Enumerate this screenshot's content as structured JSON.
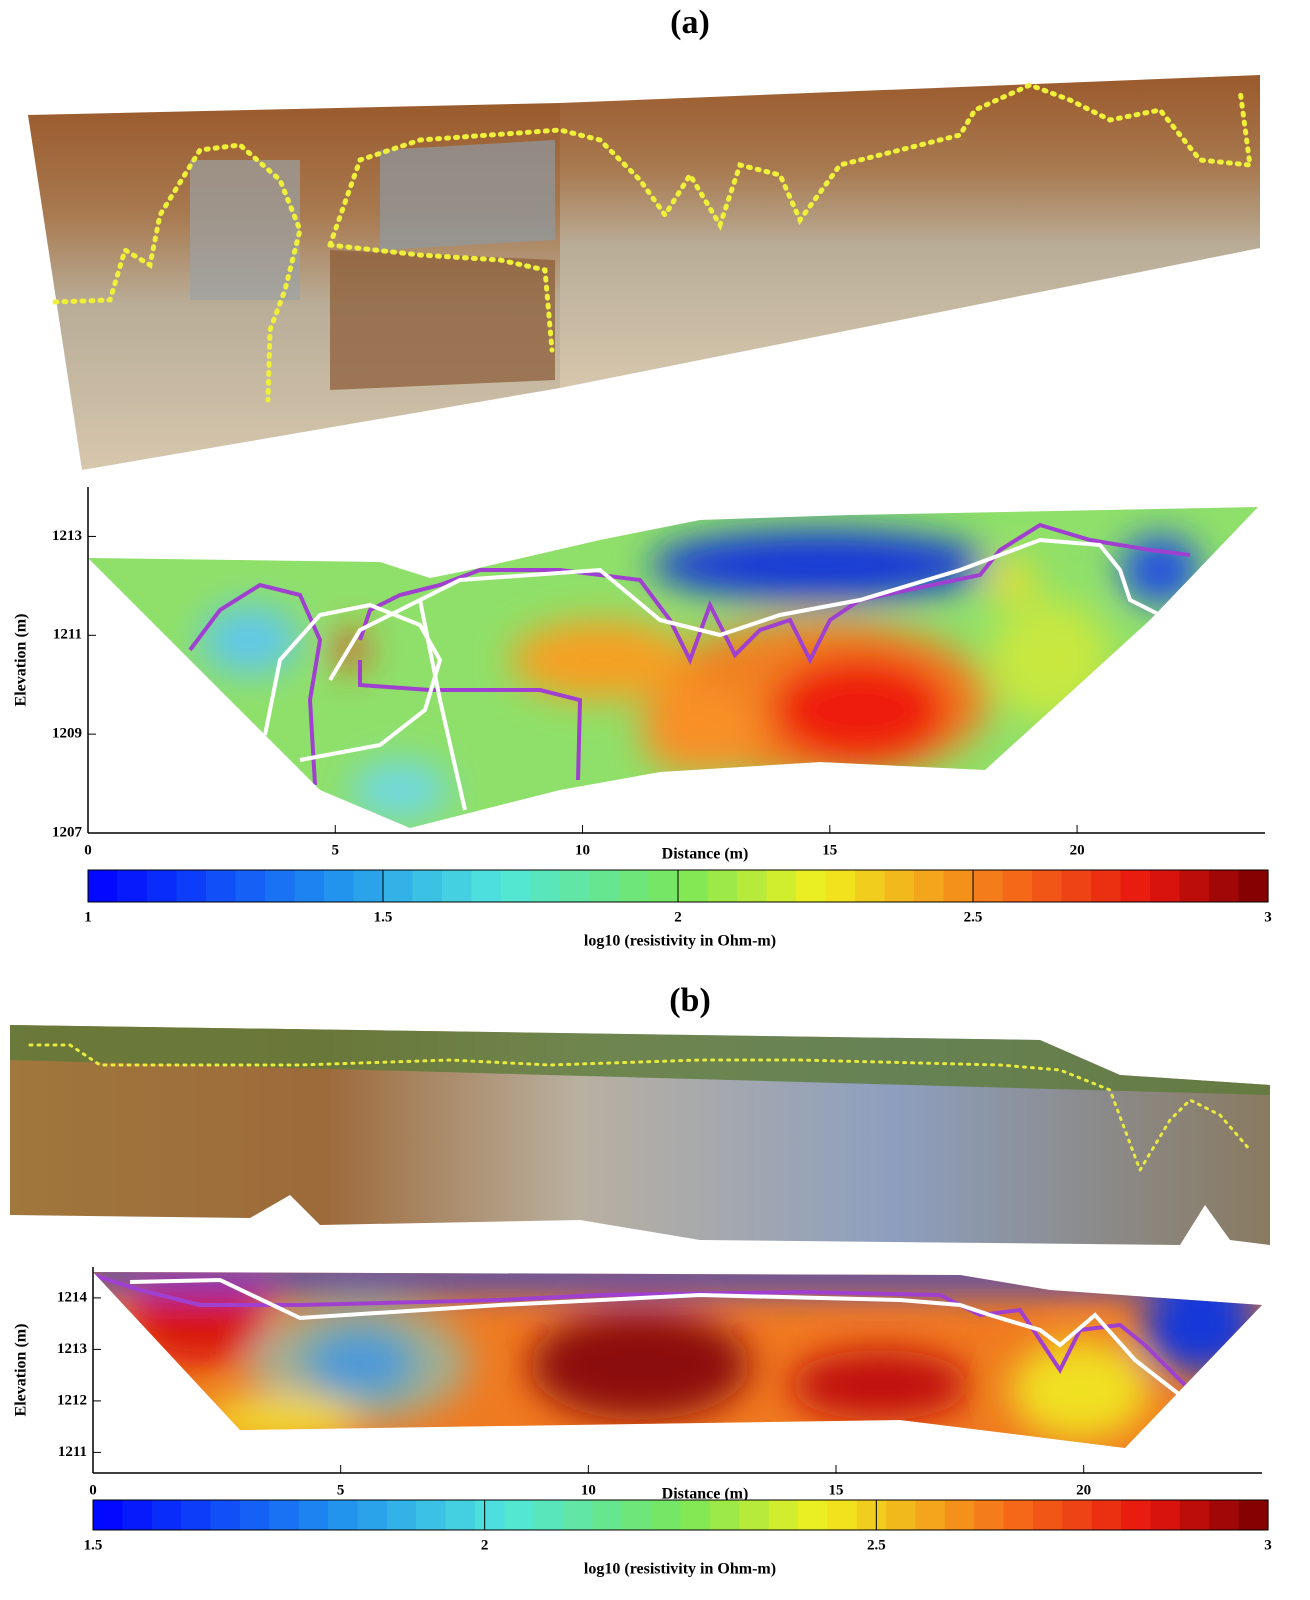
{
  "chart_data": [
    {
      "type": "contour",
      "panel_label": "(a)",
      "xlabel": "Distance (m)",
      "ylabel": "Elevation (m)",
      "xlim": [
        0,
        23.8
      ],
      "ylim": [
        1207,
        1214
      ],
      "xticks": [
        0,
        5,
        10,
        15,
        20
      ],
      "yticks": [
        1207,
        1209,
        1211,
        1213
      ],
      "colorbar": {
        "label": "log10 (resistivity in Ohm-m)",
        "lim": [
          1,
          3
        ],
        "ticks": [
          1,
          1.5,
          2,
          2.5,
          3
        ]
      }
    },
    {
      "type": "contour",
      "panel_label": "(b)",
      "xlabel": "Distance (m)",
      "ylabel": "Elevation (m)",
      "xlim": [
        0,
        23.6
      ],
      "ylim": [
        1210.6,
        1214.6
      ],
      "xticks": [
        0,
        5,
        10,
        15,
        20
      ],
      "yticks": [
        1211,
        1212,
        1213,
        1214
      ],
      "colorbar": {
        "label": "log10 (resistivity in Ohm-m)",
        "lim": [
          1.5,
          3
        ],
        "ticks": [
          1.5,
          2,
          2.5,
          3
        ]
      }
    }
  ]
}
